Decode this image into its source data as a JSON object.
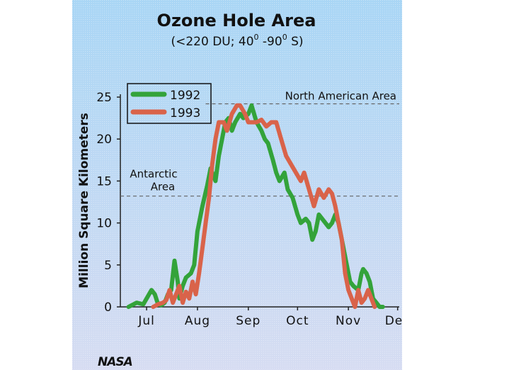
{
  "chart_data": {
    "type": "line",
    "title": "Ozone Hole Area",
    "subtitle": "(<220 DU; 40°-90°S)",
    "subtitle_parts": [
      "(<220 DU; 40",
      "0",
      " -90",
      "0",
      " S)"
    ],
    "ylabel": "Million Square Kilometers",
    "xlabel": "",
    "ylim": [
      0,
      25
    ],
    "yticks": [
      "0",
      "5",
      "10",
      "15",
      "20",
      "25"
    ],
    "xticks": [
      "Jul",
      "Aug",
      "Sep",
      "Oct",
      "Nov",
      "Dec"
    ],
    "xtick_doy": [
      196,
      227,
      258,
      288,
      319,
      349
    ],
    "xlim_doy": [
      180,
      350
    ],
    "legend_position": "top-left",
    "colors": {
      "1992": "#33a33a",
      "1993": "#d9634a",
      "reference_line": "#666666",
      "background_top": "#a9d6f5",
      "background_bottom": "#d6dcf2"
    },
    "reference_lines": [
      {
        "label": "North American Area",
        "value": 24.2
      },
      {
        "label_lines": [
          "Antarctic",
          "Area"
        ],
        "value": 13.2
      }
    ],
    "series": [
      {
        "name": "1992",
        "color": "#33a33a",
        "x": [
          185,
          190,
          194,
          196,
          199,
          201,
          203,
          205,
          207,
          209,
          211,
          213,
          215,
          216,
          218,
          220,
          223,
          225,
          227,
          230,
          233,
          235,
          238,
          240,
          242,
          244,
          246,
          248,
          250,
          253,
          255,
          258,
          260,
          263,
          266,
          268,
          270,
          273,
          275,
          277,
          280,
          282,
          285,
          288,
          290,
          293,
          295,
          297,
          299,
          301,
          303,
          305,
          307,
          309,
          311,
          313,
          315,
          317,
          320,
          322,
          325,
          327,
          328,
          330,
          332,
          334,
          336,
          338,
          340
        ],
        "y": [
          0,
          0.5,
          0.3,
          1,
          2,
          1.5,
          0.3,
          0.2,
          0.5,
          1.5,
          2,
          5.5,
          3,
          1,
          2.5,
          3.5,
          4,
          5,
          9,
          12,
          14.5,
          16.5,
          15,
          18,
          20,
          22,
          22.5,
          21,
          22,
          23,
          22.5,
          23,
          24,
          22,
          21,
          20,
          19.5,
          17.5,
          16,
          15,
          16,
          14,
          13,
          11,
          10,
          10.5,
          10,
          8,
          9,
          11,
          10.5,
          10,
          9.5,
          10,
          11,
          10,
          8,
          6,
          3,
          2.5,
          2,
          4,
          4.5,
          4,
          3,
          1,
          0.5,
          0,
          0
        ]
      },
      {
        "name": "1993",
        "color": "#d9634a",
        "x": [
          200,
          203,
          206,
          208,
          210,
          212,
          214,
          216,
          218,
          220,
          222,
          224,
          226,
          228,
          230,
          232,
          234,
          236,
          238,
          240,
          243,
          245,
          248,
          251,
          253,
          256,
          258,
          260,
          263,
          266,
          269,
          272,
          275,
          278,
          281,
          284,
          287,
          290,
          292,
          295,
          298,
          301,
          304,
          307,
          309,
          311,
          313,
          315,
          317,
          319,
          321,
          323,
          325,
          327,
          329,
          331,
          333,
          335
        ],
        "y": [
          0,
          0.3,
          0.5,
          0.8,
          2,
          0.5,
          1.5,
          2.5,
          0.5,
          1.8,
          1,
          3,
          1.5,
          4,
          7,
          10,
          13,
          17,
          20,
          22,
          22,
          21,
          23,
          24,
          24,
          23,
          22,
          22,
          22,
          22.3,
          21.5,
          22,
          22,
          20,
          18,
          17,
          16,
          15,
          16,
          14,
          12,
          14,
          13,
          14,
          13.5,
          12,
          10,
          8,
          4,
          2,
          1,
          0,
          2,
          0.5,
          1,
          2,
          1,
          0
        ]
      }
    ]
  }
}
